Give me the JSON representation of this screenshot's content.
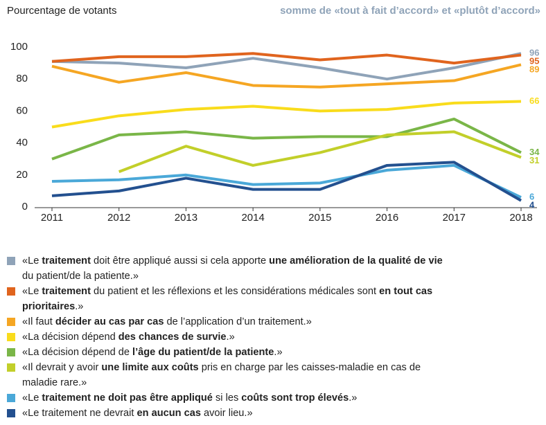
{
  "chart_data": {
    "type": "line",
    "title": "Pourcentage de votants",
    "subtitle": "somme de «tout à fait d’accord» et «plutôt d’accord»",
    "categories": [
      "2011",
      "2012",
      "2013",
      "2014",
      "2015",
      "2016",
      "2017",
      "2018"
    ],
    "ylim": [
      0,
      100
    ],
    "yticks": [
      0,
      20,
      40,
      60,
      80,
      100
    ],
    "grid": false,
    "series": [
      {
        "name": [
          {
            "text": "«Le "
          },
          {
            "text": "traitement",
            "bold": true
          },
          {
            "text": " doit être appliqué aussi si cela apporte "
          },
          {
            "text": "une amélioration de la qualité de vie",
            "bold": true
          },
          {
            "text": " du patient/de la patiente.»"
          }
        ],
        "color": "#8fa3b8",
        "values": [
          91,
          90,
          87,
          93,
          87,
          80,
          87,
          96
        ]
      },
      {
        "name": [
          {
            "text": "«Le "
          },
          {
            "text": "traitement",
            "bold": true
          },
          {
            "text": " du patient et les réflexions et les considérations médicales sont "
          },
          {
            "text": "en tout cas prioritaires",
            "bold": true
          },
          {
            "text": ".»"
          }
        ],
        "color": "#e0641e",
        "values": [
          91,
          94,
          94,
          96,
          92,
          95,
          90,
          95
        ]
      },
      {
        "name": [
          {
            "text": "«Il faut "
          },
          {
            "text": "décider au cas par cas",
            "bold": true
          },
          {
            "text": " de l’application d’un traitement.»"
          }
        ],
        "color": "#f5a623",
        "values": [
          88,
          78,
          84,
          76,
          75,
          77,
          79,
          89
        ]
      },
      {
        "name": [
          {
            "text": "«La décision dépend "
          },
          {
            "text": "des chances de survie",
            "bold": true
          },
          {
            "text": ".»"
          }
        ],
        "color": "#f9dc1c",
        "values": [
          50,
          57,
          61,
          63,
          60,
          61,
          65,
          66
        ]
      },
      {
        "name": [
          {
            "text": "«La décision dépend de "
          },
          {
            "text": "l’âge du patient/de la patiente",
            "bold": true
          },
          {
            "text": ".»"
          }
        ],
        "color": "#7ab648",
        "values": [
          30,
          45,
          47,
          43,
          44,
          44,
          55,
          34
        ]
      },
      {
        "name": [
          {
            "text": "«Il devrait y avoir "
          },
          {
            "text": "une limite aux coûts",
            "bold": true
          },
          {
            "text": " pris en charge par les caisses-maladie en cas de maladie rare.»"
          }
        ],
        "color": "#c2cf2a",
        "values": [
          null,
          22,
          38,
          26,
          34,
          45,
          47,
          31
        ]
      },
      {
        "name": [
          {
            "text": "«Le "
          },
          {
            "text": "traitement ne doit pas être appliqué",
            "bold": true
          },
          {
            "text": " si les "
          },
          {
            "text": "coûts sont trop élevés",
            "bold": true
          },
          {
            "text": ".»"
          }
        ],
        "color": "#4aa8d8",
        "values": [
          16,
          17,
          20,
          14,
          15,
          23,
          26,
          6
        ]
      },
      {
        "name": [
          {
            "text": "«Le traitement ne devrait "
          },
          {
            "text": "en aucun cas",
            "bold": true
          },
          {
            "text": " avoir lieu.»"
          }
        ],
        "color": "#23508f",
        "values": [
          7,
          10,
          18,
          11,
          11,
          26,
          28,
          4
        ]
      }
    ]
  }
}
